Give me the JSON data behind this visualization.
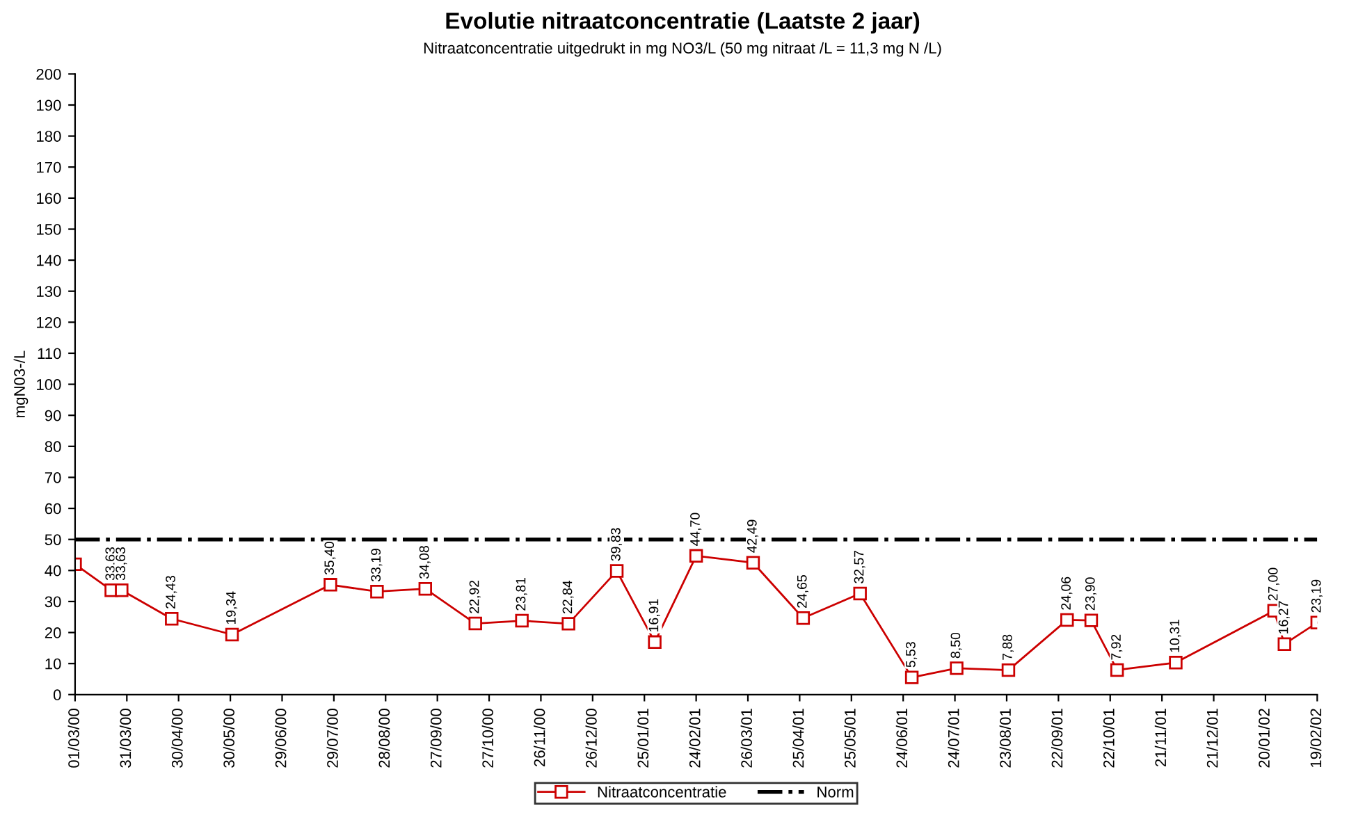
{
  "chart_data": {
    "type": "line",
    "title": "Evolutie nitraatconcentratie (Laatste 2 jaar)",
    "subtitle": "Nitraatconcentratie uitgedrukt in mg NO3/L (50 mg nitraat /L = 11,3 mg N /L)",
    "ylabel": "mgN03-/L",
    "x": [
      "2000-03-01",
      "2000-03-22",
      "2000-03-28",
      "2000-04-26",
      "2000-05-31",
      "2000-07-27",
      "2000-08-23",
      "2000-09-20",
      "2000-10-19",
      "2000-11-15",
      "2000-12-12",
      "2001-01-09",
      "2001-01-31",
      "2001-02-24",
      "2001-03-29",
      "2001-04-27",
      "2001-05-30",
      "2001-06-29",
      "2001-07-25",
      "2001-08-24",
      "2001-09-27",
      "2001-10-11",
      "2001-10-26",
      "2001-11-29",
      "2002-01-25",
      "2002-01-31",
      "2002-02-19"
    ],
    "series": [
      {
        "name": "Nitraatconcentratie",
        "color": "#cc0000",
        "values": [
          42,
          33.63,
          33.63,
          24.43,
          19.34,
          35.4,
          33.19,
          34.08,
          22.92,
          23.81,
          22.84,
          39.83,
          16.91,
          44.7,
          42.49,
          24.65,
          32.57,
          5.53,
          8.5,
          7.88,
          24.06,
          23.9,
          7.92,
          10.31,
          27.0,
          16.27,
          23.19
        ],
        "value_labels": [
          null,
          "33,63",
          "33,63",
          "24,43",
          "19,34",
          "35,40",
          "33,19",
          "34,08",
          "22,92",
          "23,81",
          "22,84",
          "39,83",
          "16,91",
          "44,70",
          "42,49",
          "24,65",
          "32,57",
          "5,53",
          "8,50",
          "7,88",
          "24,06",
          "23,90",
          "7,92",
          "10,31",
          "27,00",
          "16,27",
          "23,19"
        ]
      }
    ],
    "ref_lines": [
      {
        "axis": "y",
        "value": 50,
        "label": "Norm",
        "color": "#000000",
        "line_style": "dashdot"
      }
    ],
    "xlim": [
      "2000-03-01",
      "2002-02-19"
    ],
    "xticks": [
      {
        "value": "2000-03-01",
        "label": "01/03/00"
      },
      {
        "value": "2000-03-31",
        "label": "31/03/00"
      },
      {
        "value": "2000-04-30",
        "label": "30/04/00"
      },
      {
        "value": "2000-05-30",
        "label": "30/05/00"
      },
      {
        "value": "2000-06-29",
        "label": "29/06/00"
      },
      {
        "value": "2000-07-29",
        "label": "29/07/00"
      },
      {
        "value": "2000-08-28",
        "label": "28/08/00"
      },
      {
        "value": "2000-09-27",
        "label": "27/09/00"
      },
      {
        "value": "2000-10-27",
        "label": "27/10/00"
      },
      {
        "value": "2000-11-26",
        "label": "26/11/00"
      },
      {
        "value": "2000-12-26",
        "label": "26/12/00"
      },
      {
        "value": "2001-01-25",
        "label": "25/01/01"
      },
      {
        "value": "2001-02-24",
        "label": "24/02/01"
      },
      {
        "value": "2001-03-26",
        "label": "26/03/01"
      },
      {
        "value": "2001-04-25",
        "label": "25/04/01"
      },
      {
        "value": "2001-05-25",
        "label": "25/05/01"
      },
      {
        "value": "2001-06-24",
        "label": "24/06/01"
      },
      {
        "value": "2001-07-24",
        "label": "24/07/01"
      },
      {
        "value": "2001-08-23",
        "label": "23/08/01"
      },
      {
        "value": "2001-09-22",
        "label": "22/09/01"
      },
      {
        "value": "2001-10-22",
        "label": "22/10/01"
      },
      {
        "value": "2001-11-21",
        "label": "21/11/01"
      },
      {
        "value": "2001-12-21",
        "label": "21/12/01"
      },
      {
        "value": "2002-01-20",
        "label": "20/01/02"
      },
      {
        "value": "2002-02-19",
        "label": "19/02/02"
      }
    ],
    "ylim": [
      0,
      200
    ],
    "yticks": [
      0,
      10,
      20,
      30,
      40,
      50,
      60,
      70,
      80,
      90,
      100,
      110,
      120,
      130,
      140,
      150,
      160,
      170,
      180,
      190,
      200
    ],
    "marker": "square",
    "line_style": "solid",
    "grid": false,
    "legend": "bottom"
  }
}
